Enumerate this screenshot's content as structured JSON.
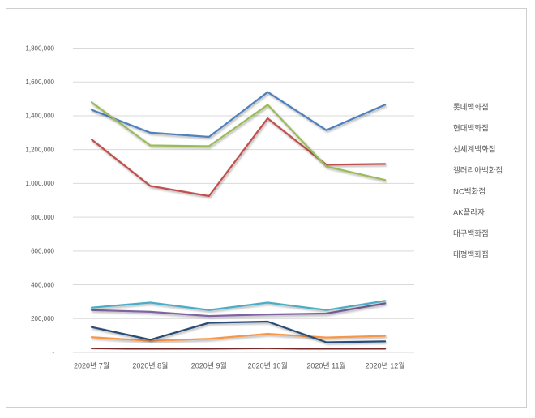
{
  "chart_data": {
    "type": "line",
    "title": "",
    "xlabel": "",
    "ylabel": "",
    "categories": [
      "2020년 7월",
      "2020년 8월",
      "2020년 9월",
      "2020년 10월",
      "2020년 11월",
      "2020년 12월"
    ],
    "series": [
      {
        "name": "롯데백화점",
        "color": "#4F81BD",
        "values": [
          1435000,
          1300000,
          1275000,
          1540000,
          1315000,
          1465000
        ]
      },
      {
        "name": "현대백화점",
        "color": "#C0504D",
        "values": [
          1260000,
          985000,
          925000,
          1385000,
          1110000,
          1115000
        ]
      },
      {
        "name": "신세계백화점",
        "color": "#9BBB59",
        "values": [
          1480000,
          1225000,
          1220000,
          1465000,
          1100000,
          1020000
        ]
      },
      {
        "name": "갤러리아백화점",
        "color": "#8064A2",
        "values": [
          250000,
          240000,
          215000,
          225000,
          230000,
          290000
        ]
      },
      {
        "name": "NC백화점",
        "color": "#4BACC6",
        "values": [
          265000,
          295000,
          250000,
          295000,
          250000,
          305000
        ]
      },
      {
        "name": "AK플라자",
        "color": "#F79646",
        "values": [
          90000,
          68000,
          80000,
          110000,
          88000,
          98000
        ]
      },
      {
        "name": "대구백화점",
        "color": "#2C4D75",
        "values": [
          150000,
          75000,
          175000,
          182000,
          60000,
          65000
        ]
      },
      {
        "name": "태평백화점",
        "color": "#772C2A",
        "values": [
          25000,
          20000,
          22000,
          25000,
          20000,
          22000
        ]
      }
    ],
    "ylim": [
      0,
      1800000
    ],
    "ytick_step": 200000,
    "ytick_labels": [
      "-",
      "200,000",
      "400,000",
      "600,000",
      "800,000",
      "1,000,000",
      "1,200,000",
      "1,400,000",
      "1,600,000",
      "1,800,000"
    ],
    "grid": true,
    "legend_position": "right",
    "colors": {
      "axis_text": "#595959",
      "gridline": "#d9d9d9",
      "frame_border": "#cfcfcf",
      "background": "#ffffff"
    }
  }
}
